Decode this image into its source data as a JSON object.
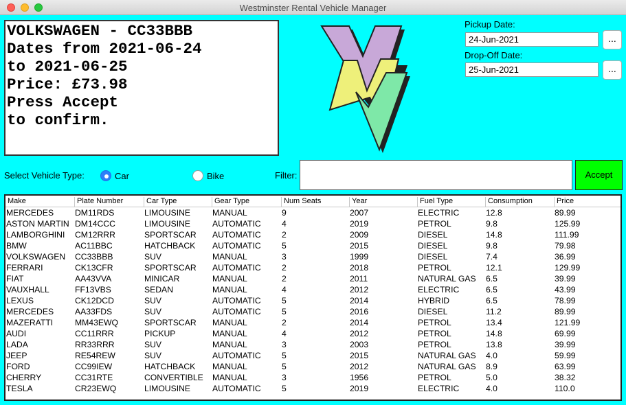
{
  "window": {
    "title": "Westminster Rental Vehicle Manager"
  },
  "info": {
    "lines": [
      "VOLKSWAGEN - CC33BBB",
      "Dates from 2021-06-24",
      "to 2021-06-25",
      "Price: £73.98",
      "Press Accept",
      "to confirm."
    ]
  },
  "pickup": {
    "label": "Pickup Date:",
    "value": "24-Jun-2021",
    "button_label": "..."
  },
  "dropoff": {
    "label": "Drop-Off Date:",
    "value": "25-Jun-2021",
    "button_label": "..."
  },
  "vehicle_type": {
    "label": "Select Vehicle Type:",
    "options": [
      {
        "label": "Car",
        "selected": true
      },
      {
        "label": "Bike",
        "selected": false
      }
    ]
  },
  "filter": {
    "label": "Filter:",
    "value": ""
  },
  "accept_label": "Accept",
  "logo": {
    "colors": {
      "purple": "#c8a8d8",
      "yellow": "#eef07a",
      "green": "#7ee8a8"
    }
  },
  "table": {
    "columns": [
      "Make",
      "Plate Number",
      "Car Type",
      "Gear Type",
      "Num Seats",
      "Year",
      "Fuel Type",
      "Consumption",
      "Price"
    ],
    "rows": [
      [
        "MERCEDES",
        "DM11RDS",
        "LIMOUSINE",
        "MANUAL",
        "9",
        "2007",
        "ELECTRIC",
        "12.8",
        "89.99"
      ],
      [
        "ASTON MARTIN",
        "DM14CCC",
        "LIMOUSINE",
        "AUTOMATIC",
        "4",
        "2019",
        "PETROL",
        "9.8",
        "125.99"
      ],
      [
        "LAMBORGHINI",
        "CM12RRR",
        "SPORTSCAR",
        "AUTOMATIC",
        "2",
        "2009",
        "DIESEL",
        "14.8",
        "111.99"
      ],
      [
        "BMW",
        "AC11BBC",
        "HATCHBACK",
        "AUTOMATIC",
        "5",
        "2015",
        "DIESEL",
        "9.8",
        "79.98"
      ],
      [
        "VOLKSWAGEN",
        "CC33BBB",
        "SUV",
        "MANUAL",
        "3",
        "1999",
        "DIESEL",
        "7.4",
        "36.99"
      ],
      [
        "FERRARI",
        "CK13CFR",
        "SPORTSCAR",
        "AUTOMATIC",
        "2",
        "2018",
        "PETROL",
        "12.1",
        "129.99"
      ],
      [
        "FIAT",
        "AA43VVA",
        "MINICAR",
        "MANUAL",
        "2",
        "2011",
        "NATURAL GAS",
        "6.5",
        "39.99"
      ],
      [
        "VAUXHALL",
        "FF13VBS",
        "SEDAN",
        "MANUAL",
        "4",
        "2012",
        "ELECTRIC",
        "6.5",
        "43.99"
      ],
      [
        "LEXUS",
        "CK12DCD",
        "SUV",
        "AUTOMATIC",
        "5",
        "2014",
        "HYBRID",
        "6.5",
        "78.99"
      ],
      [
        "MERCEDES",
        "AA33FDS",
        "SUV",
        "AUTOMATIC",
        "5",
        "2016",
        "DIESEL",
        "11.2",
        "89.99"
      ],
      [
        "MAZERATTI",
        "MM43EWQ",
        "SPORTSCAR",
        "MANUAL",
        "2",
        "2014",
        "PETROL",
        "13.4",
        "121.99"
      ],
      [
        "AUDI",
        "CC11RRR",
        "PICKUP",
        "MANUAL",
        "4",
        "2012",
        "PETROL",
        "14.8",
        "69.99"
      ],
      [
        "LADA",
        "RR33RRR",
        "SUV",
        "MANUAL",
        "3",
        "2003",
        "PETROL",
        "13.8",
        "39.99"
      ],
      [
        "JEEP",
        "RE54REW",
        "SUV",
        "AUTOMATIC",
        "5",
        "2015",
        "NATURAL GAS",
        "4.0",
        "59.99"
      ],
      [
        "FORD",
        "CC99IEW",
        "HATCHBACK",
        "MANUAL",
        "5",
        "2012",
        "NATURAL GAS",
        "8.9",
        "63.99"
      ],
      [
        "CHERRY",
        "CC31RTE",
        "CONVERTIBLE",
        "MANUAL",
        "3",
        "1956",
        "PETROL",
        "5.0",
        "38.32"
      ],
      [
        "TESLA",
        "CR23EWQ",
        "LIMOUSINE",
        "AUTOMATIC",
        "5",
        "2019",
        "ELECTRIC",
        "4.0",
        "110.0"
      ]
    ]
  }
}
